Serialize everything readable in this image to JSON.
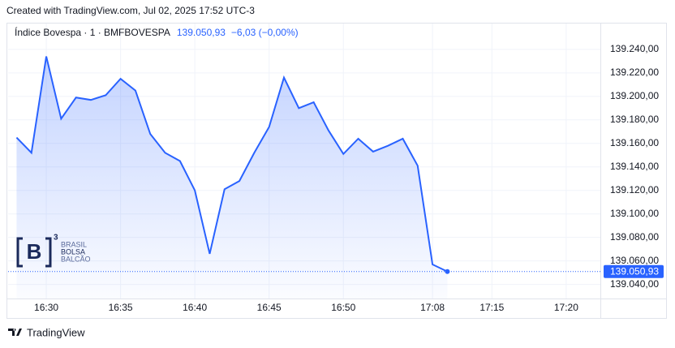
{
  "header": {
    "created": "Created with TradingView.com, Jul 02, 2025 17:52 UTC-3",
    "footer": "TradingView"
  },
  "logo": {
    "mark": "B",
    "sup": "3",
    "lines": [
      "BRASIL",
      "BOLSA",
      "BALCÃO"
    ]
  },
  "chart_data": {
    "type": "line",
    "title": "Índice Bovespa · 1 · BMFBOVESPA",
    "price": "139.050,93",
    "change": "−6,03 (−0,00%)",
    "color": "#2962ff",
    "x": [
      -2,
      -1,
      0,
      1,
      2,
      3,
      4,
      5,
      6,
      7,
      8,
      9,
      10,
      11,
      12,
      13,
      14,
      15,
      16,
      17,
      18,
      19,
      20,
      21,
      22,
      23,
      24,
      25,
      26,
      27
    ],
    "values": [
      139165,
      139152,
      139234,
      139181,
      139199,
      139197,
      139201,
      139215,
      139205,
      139168,
      139152,
      139145,
      139120,
      139066,
      139121,
      139128,
      139152,
      139174,
      139216,
      139190,
      139195,
      139171,
      139151,
      139164,
      139153,
      139158,
      139164,
      139141,
      139057,
      139050.93
    ],
    "value_labels": [
      null,
      null,
      null,
      null,
      null,
      null,
      null,
      null,
      null,
      null,
      null,
      null,
      null,
      null,
      null,
      null,
      null,
      null,
      null,
      null,
      null,
      null,
      null,
      null,
      null,
      null,
      null,
      null,
      null,
      "139.050,93"
    ],
    "xlim": [
      -2.57,
      37.3
    ],
    "xticks": [
      {
        "value": 0,
        "label": "16:30"
      },
      {
        "value": 5,
        "label": "16:35"
      },
      {
        "value": 10,
        "label": "16:40"
      },
      {
        "value": 15,
        "label": "16:45"
      },
      {
        "value": 20,
        "label": "16:50"
      },
      {
        "value": 26,
        "label": "17:08"
      },
      {
        "value": 30,
        "label": "17:15"
      },
      {
        "value": 35,
        "label": "17:20"
      }
    ],
    "ylim": [
      139028,
      139262
    ],
    "yticks": [
      {
        "value": 139040,
        "label": "139.040,00"
      },
      {
        "value": 139060,
        "label": "139.060,00"
      },
      {
        "value": 139080,
        "label": "139.080,00"
      },
      {
        "value": 139100,
        "label": "139.100,00"
      },
      {
        "value": 139120,
        "label": "139.120,00"
      },
      {
        "value": 139140,
        "label": "139.140,00"
      },
      {
        "value": 139160,
        "label": "139.160,00"
      },
      {
        "value": 139180,
        "label": "139.180,00"
      },
      {
        "value": 139200,
        "label": "139.200,00"
      },
      {
        "value": 139220,
        "label": "139.220,00"
      },
      {
        "value": 139240,
        "label": "139.240,00"
      }
    ],
    "grid": true
  }
}
